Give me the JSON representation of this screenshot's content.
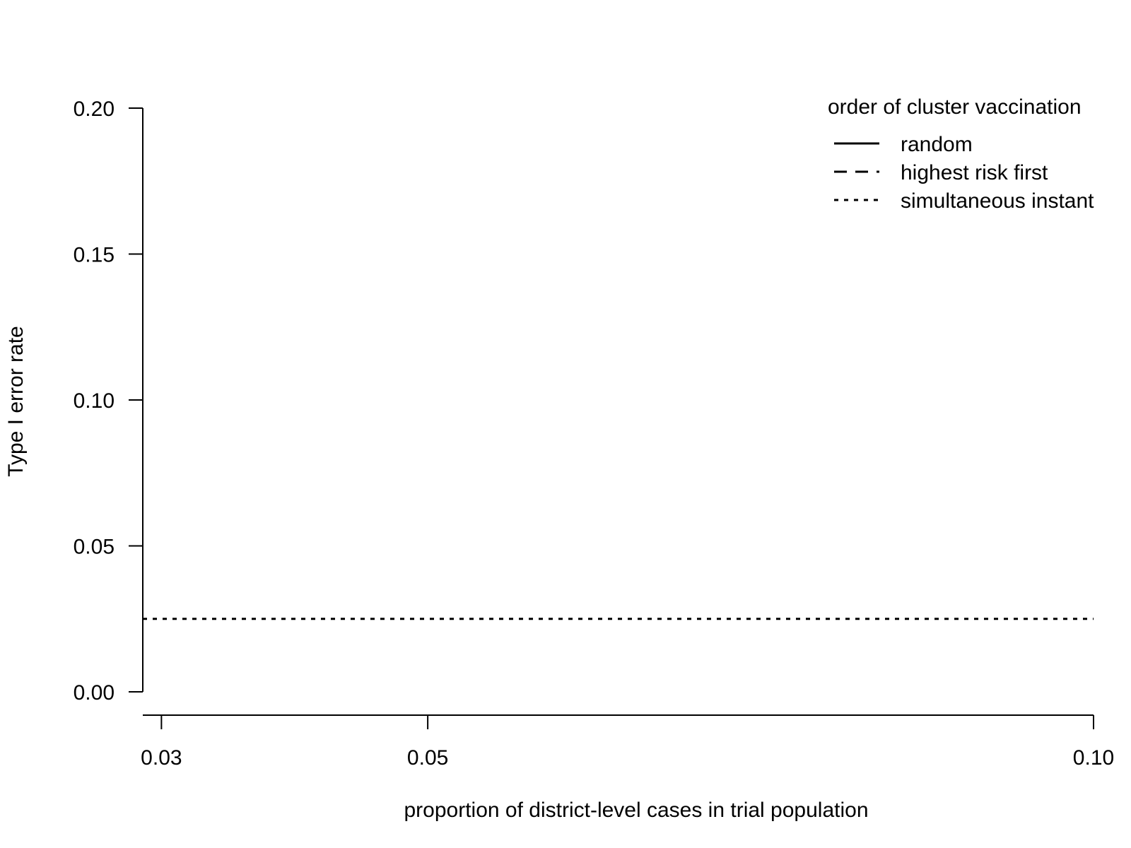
{
  "chart_data": {
    "type": "line",
    "title": "",
    "xlabel": "proportion of district-level cases in trial population",
    "ylabel": "Type I error rate",
    "xlim": [
      0.0286,
      0.1
    ],
    "ylim": [
      0.0,
      0.2
    ],
    "x_ticks": [
      {
        "value": 0.03,
        "label": "0.03"
      },
      {
        "value": 0.05,
        "label": "0.05"
      },
      {
        "value": 0.1,
        "label": "0.10"
      }
    ],
    "y_ticks": [
      {
        "value": 0.0,
        "label": "0.00"
      },
      {
        "value": 0.05,
        "label": "0.05"
      },
      {
        "value": 0.1,
        "label": "0.10"
      },
      {
        "value": 0.15,
        "label": "0.15"
      },
      {
        "value": 0.2,
        "label": "0.20"
      }
    ],
    "grid": false,
    "legend": {
      "title": "order of cluster vaccination",
      "placement": "top-right",
      "entries": [
        {
          "label": "random",
          "style": "solid"
        },
        {
          "label": "highest risk first",
          "style": "dashed"
        },
        {
          "label": "simultaneous instant",
          "style": "dotted"
        }
      ]
    },
    "series": [
      {
        "name": "simultaneous instant",
        "style": "dotted",
        "color": "#000000",
        "x": [
          0.0286,
          0.1
        ],
        "y": [
          0.025,
          0.025
        ]
      }
    ]
  }
}
